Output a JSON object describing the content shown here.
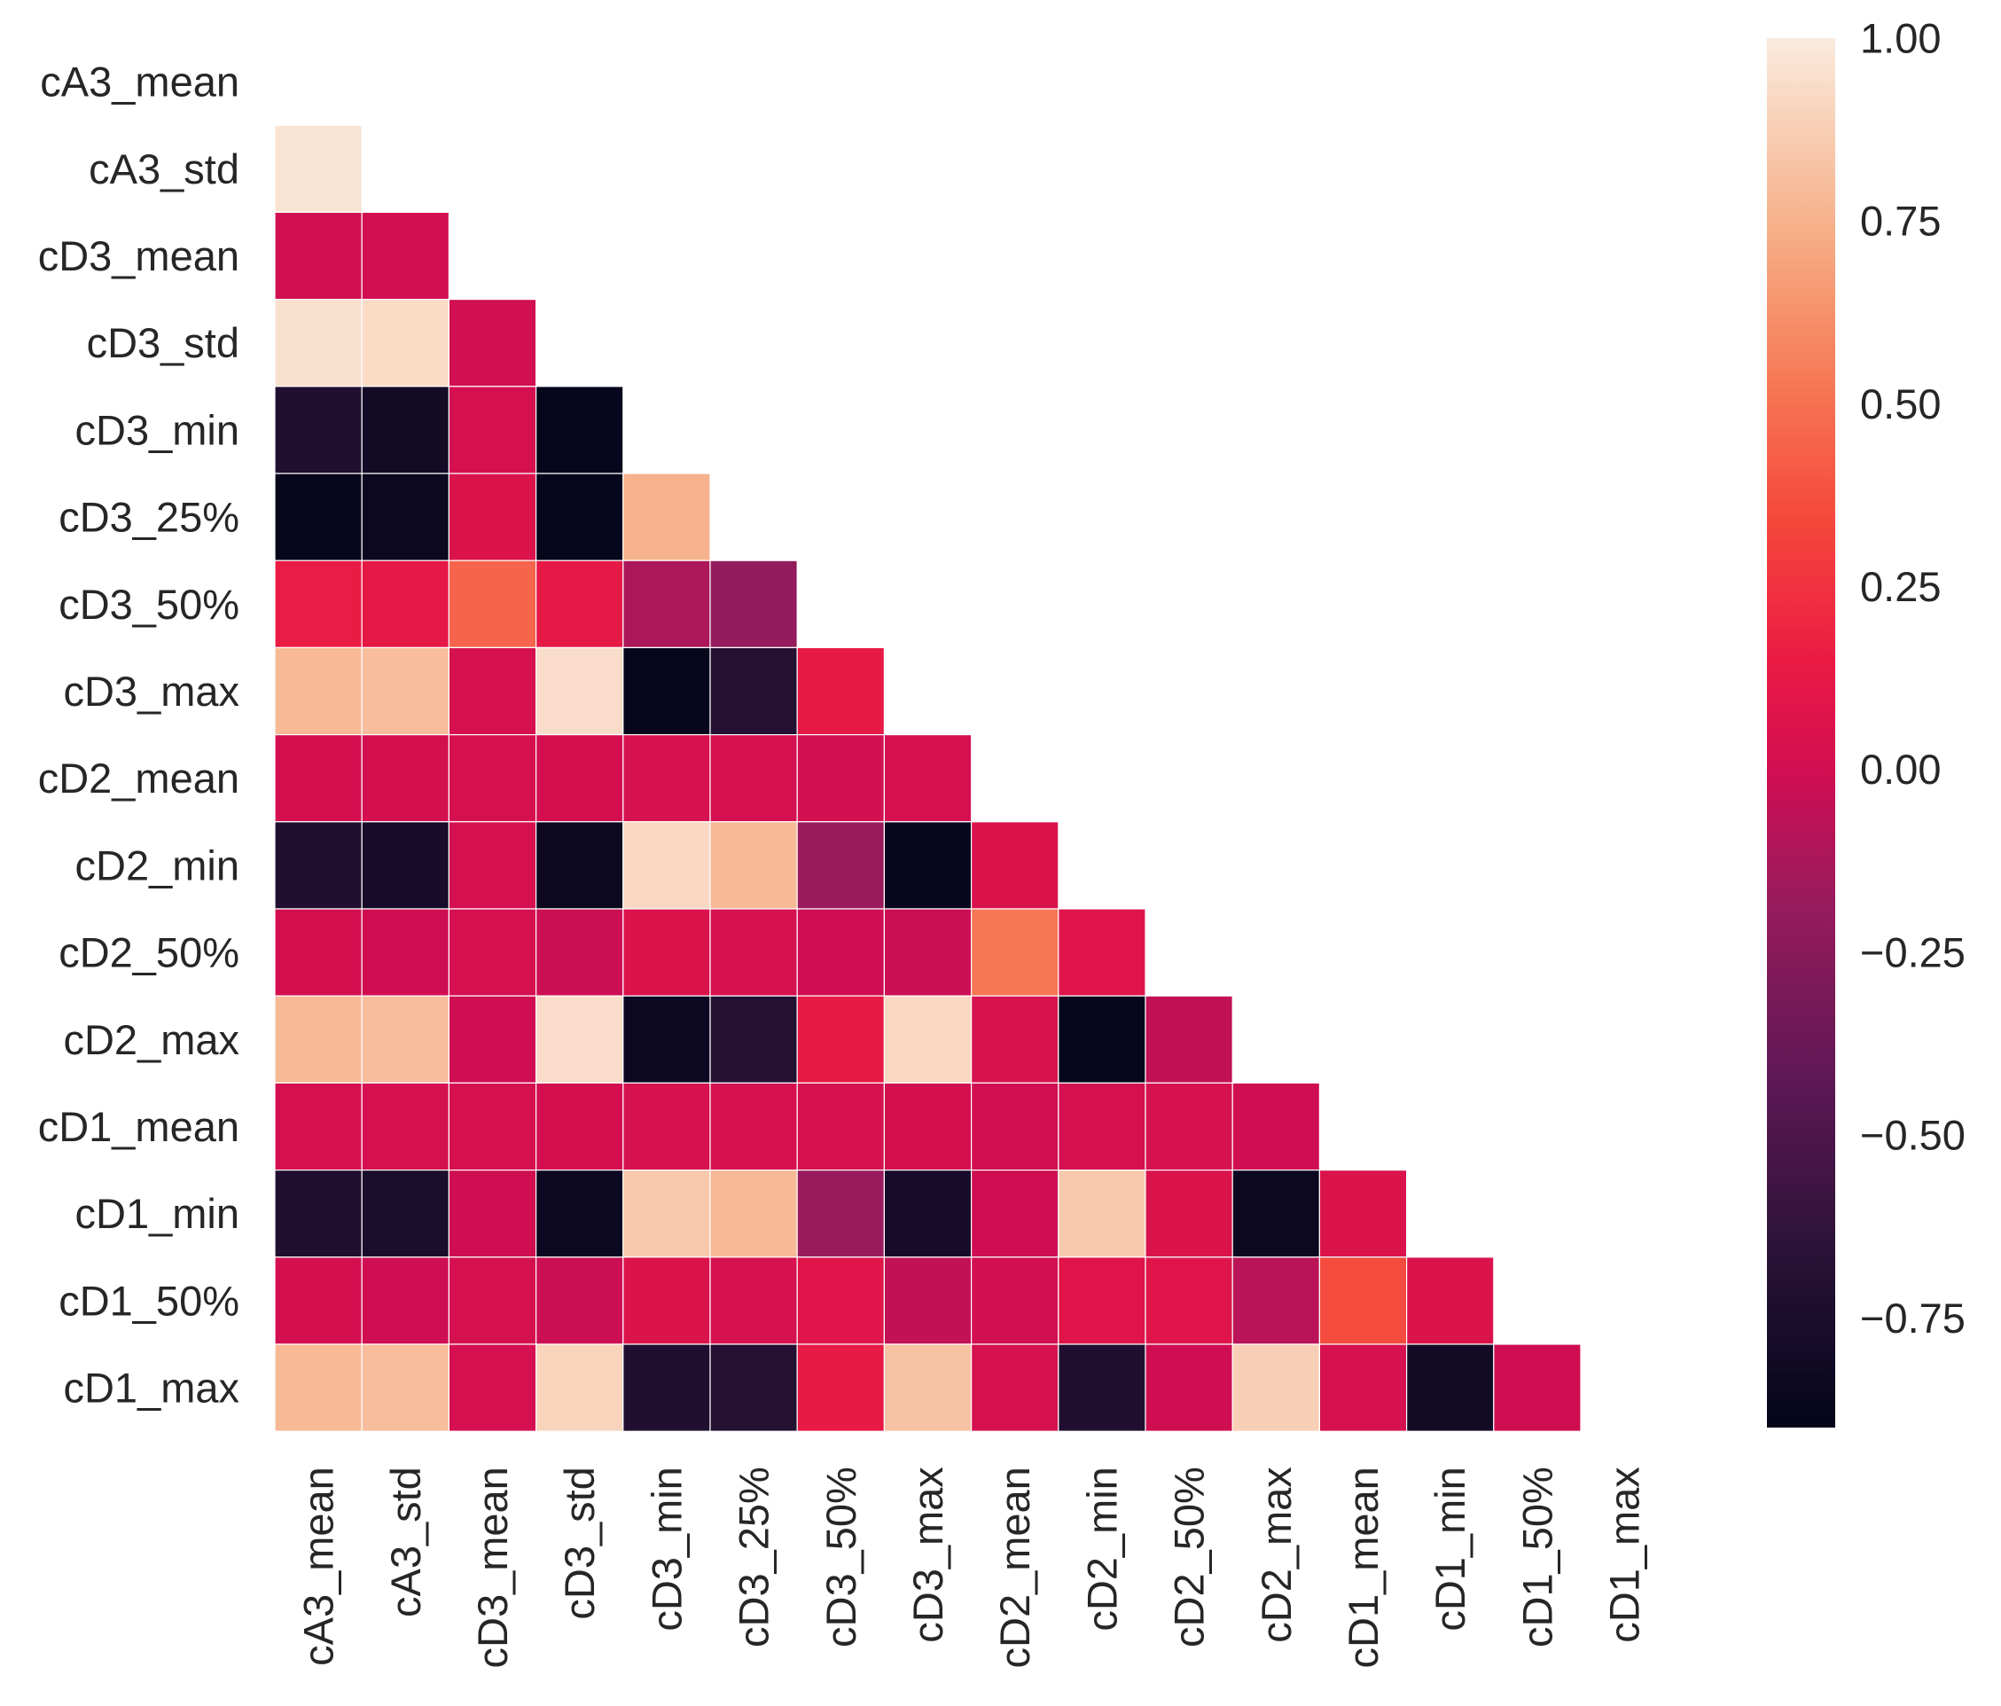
{
  "chart_data": {
    "type": "heatmap",
    "title": "",
    "xlabel": "",
    "ylabel": "",
    "labels": [
      "cA3_mean",
      "cA3_std",
      "cD3_mean",
      "cD3_std",
      "cD3_min",
      "cD3_25%",
      "cD3_50%",
      "cD3_max",
      "cD2_mean",
      "cD2_min",
      "cD2_50%",
      "cD2_max",
      "cD1_mean",
      "cD1_min",
      "cD1_50%",
      "cD1_max"
    ],
    "mask": "upper-triangle-including-diagonal",
    "values": [
      [],
      [
        0.97
      ],
      [
        0.0,
        0.0
      ],
      [
        0.95,
        0.93,
        0.0
      ],
      [
        -0.72,
        -0.8,
        0.02,
        -0.88
      ],
      [
        -0.88,
        -0.84,
        0.05,
        -0.88,
        0.75
      ],
      [
        0.15,
        0.12,
        0.45,
        0.12,
        -0.12,
        -0.2
      ],
      [
        0.78,
        0.8,
        0.03,
        0.94,
        -0.88,
        -0.7,
        0.13
      ],
      [
        0.01,
        0.01,
        0.02,
        0.01,
        0.03,
        0.02,
        0.0,
        0.02
      ],
      [
        -0.72,
        -0.78,
        0.02,
        -0.85,
        0.92,
        0.78,
        -0.18,
        -0.86,
        0.05
      ],
      [
        0.01,
        -0.01,
        0.02,
        -0.02,
        0.06,
        0.03,
        -0.01,
        -0.02,
        0.52,
        0.08
      ],
      [
        0.78,
        0.8,
        -0.01,
        0.94,
        -0.84,
        -0.7,
        0.13,
        0.92,
        0.04,
        -0.88,
        -0.05
      ],
      [
        0.02,
        0.02,
        0.02,
        0.01,
        0.03,
        0.03,
        0.03,
        0.01,
        0.0,
        0.02,
        0.03,
        -0.01
      ],
      [
        -0.72,
        -0.75,
        -0.01,
        -0.84,
        0.85,
        0.78,
        -0.18,
        -0.78,
        -0.01,
        0.85,
        0.05,
        -0.85,
        0.06
      ],
      [
        0.01,
        -0.01,
        0.02,
        -0.02,
        0.06,
        0.03,
        0.08,
        -0.05,
        0.0,
        0.08,
        0.08,
        -0.08,
        0.35,
        0.05
      ],
      [
        0.78,
        0.8,
        0.02,
        0.9,
        -0.72,
        -0.7,
        0.13,
        0.82,
        0.03,
        -0.72,
        -0.01,
        0.88,
        0.03,
        -0.8,
        -0.01
      ]
    ],
    "vmin": -0.9,
    "vmax": 1.0,
    "colormap": "rocket",
    "colorbar": {
      "ticks": [
        1.0,
        0.75,
        0.5,
        0.25,
        0.0,
        -0.25,
        -0.5,
        -0.75
      ],
      "tick_labels": [
        "1.00",
        "0.75",
        "0.50",
        "0.25",
        "0.00",
        "−0.25",
        "−0.50",
        "−0.75"
      ]
    },
    "grid_line_color": "#ffffff"
  }
}
